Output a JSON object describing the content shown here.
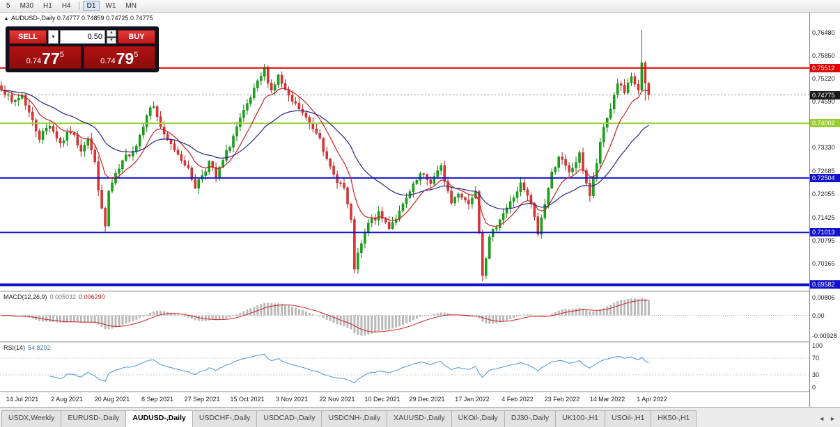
{
  "toolbar": {
    "groups": [
      [
        "5",
        "M30",
        "H1",
        "H4"
      ],
      [
        "D1",
        "W1",
        "MN"
      ]
    ],
    "active": "D1"
  },
  "symbol_header": {
    "marker": "▲",
    "text": "AUDUSD-,Daily  0.74777 0.74859 0.74725 0.74775"
  },
  "trade_panel": {
    "sell_label": "SELL",
    "buy_label": "BUY",
    "volume": "0.50",
    "dropdown_icon": "▼",
    "spin_up_icon": "▲",
    "spin_down_icon": "▼",
    "sell_price": {
      "prefix": "0.74",
      "big": "77",
      "sup": "5"
    },
    "buy_price": {
      "prefix": "0.74",
      "big": "79",
      "sup": "5"
    }
  },
  "indicators": {
    "macd": {
      "name": "MACD(12,26,9)",
      "value1": "0.005032",
      "value2": "0.006290"
    },
    "rsi": {
      "name": "RSI(14)",
      "value": "54.8292"
    }
  },
  "tabs": {
    "items": [
      "USDX,Weekly",
      "EURUSD-,Daily",
      "AUDUSD-,Daily",
      "USDCHF-,Daily",
      "USDCAD-,Daily",
      "USDCNH-,Daily",
      "XAUUSD-,Daily",
      "UKOil-,Daily",
      "DJ30-,Daily",
      "UK100-,H1",
      "USOil-,H1",
      "HK50-,H1"
    ],
    "active_index": 2,
    "scroll_left_icon": "◄",
    "scroll_right_icon": "►"
  },
  "chart_data": {
    "type": "candlestick",
    "symbol": "AUDUSD-",
    "timeframe": "Daily",
    "ohlc_display": {
      "open": 0.74777,
      "high": 0.74859,
      "low": 0.74725,
      "close": 0.74775
    },
    "bid": 0.74775,
    "ask": 0.74795,
    "candles_count": 188,
    "last_close": 0.74775,
    "price_range": [
      0.6942,
      0.7703
    ],
    "close_anchors": [
      [
        0,
        0.75
      ],
      [
        3,
        0.7455
      ],
      [
        6,
        0.7478
      ],
      [
        9,
        0.7405
      ],
      [
        11,
        0.7362
      ],
      [
        14,
        0.7398
      ],
      [
        17,
        0.7345
      ],
      [
        20,
        0.7378
      ],
      [
        23,
        0.733
      ],
      [
        25,
        0.7362
      ],
      [
        27,
        0.729
      ],
      [
        29,
        0.716
      ],
      [
        30,
        0.7118
      ],
      [
        31,
        0.7212
      ],
      [
        33,
        0.7255
      ],
      [
        36,
        0.7308
      ],
      [
        39,
        0.734
      ],
      [
        42,
        0.7428
      ],
      [
        44,
        0.7448
      ],
      [
        47,
        0.7362
      ],
      [
        50,
        0.733
      ],
      [
        53,
        0.7292
      ],
      [
        56,
        0.7228
      ],
      [
        60,
        0.7292
      ],
      [
        62,
        0.7252
      ],
      [
        65,
        0.7318
      ],
      [
        68,
        0.7388
      ],
      [
        71,
        0.7448
      ],
      [
        74,
        0.7508
      ],
      [
        76,
        0.7548
      ],
      [
        78,
        0.749
      ],
      [
        80,
        0.7528
      ],
      [
        83,
        0.7468
      ],
      [
        86,
        0.744
      ],
      [
        89,
        0.7398
      ],
      [
        92,
        0.7368
      ],
      [
        94,
        0.7295
      ],
      [
        96,
        0.7258
      ],
      [
        99,
        0.7222
      ],
      [
        101,
        0.7128
      ],
      [
        102,
        0.7005
      ],
      [
        104,
        0.7068
      ],
      [
        106,
        0.7125
      ],
      [
        109,
        0.715
      ],
      [
        112,
        0.7118
      ],
      [
        115,
        0.7155
      ],
      [
        118,
        0.721
      ],
      [
        121,
        0.7258
      ],
      [
        124,
        0.724
      ],
      [
        127,
        0.7278
      ],
      [
        130,
        0.7182
      ],
      [
        132,
        0.7212
      ],
      [
        135,
        0.718
      ],
      [
        137,
        0.7222
      ],
      [
        139,
        0.6992
      ],
      [
        141,
        0.7082
      ],
      [
        144,
        0.7142
      ],
      [
        147,
        0.7182
      ],
      [
        150,
        0.7232
      ],
      [
        153,
        0.718
      ],
      [
        155,
        0.7098
      ],
      [
        157,
        0.7182
      ],
      [
        159,
        0.7262
      ],
      [
        161,
        0.7312
      ],
      [
        164,
        0.7262
      ],
      [
        167,
        0.7312
      ],
      [
        170,
        0.7202
      ],
      [
        172,
        0.7292
      ],
      [
        174,
        0.7388
      ],
      [
        176,
        0.7442
      ],
      [
        178,
        0.7512
      ],
      [
        180,
        0.7482
      ],
      [
        182,
        0.7522
      ],
      [
        184,
        0.7492
      ],
      [
        185,
        0.7562
      ],
      [
        186,
        0.7502
      ],
      [
        187,
        0.74775
      ]
    ],
    "spikes": [
      {
        "i": 30,
        "low": 0.7104
      },
      {
        "i": 76,
        "high": 0.7553
      },
      {
        "i": 102,
        "low": 0.6999
      },
      {
        "i": 139,
        "low": 0.6968
      },
      {
        "i": 185,
        "high": 0.7656
      },
      {
        "i": 186,
        "low": 0.7462
      }
    ],
    "levels": [
      {
        "price": 0.75512,
        "color": "#e00000",
        "width": 2
      },
      {
        "price": 0.74002,
        "color": "#9acd32",
        "width": 2
      },
      {
        "price": 0.72504,
        "color": "#1212cc",
        "width": 2
      },
      {
        "price": 0.71013,
        "color": "#1212cc",
        "width": 2
      },
      {
        "price": 0.69582,
        "color": "#1212cc",
        "width": 4
      }
    ],
    "current_price": 0.74775,
    "moving_averages": [
      {
        "period": 10,
        "color": "#cc2222"
      },
      {
        "period": 30,
        "color": "#24248c"
      }
    ],
    "candle_colors": {
      "up_fill": "#15a815",
      "up_stroke": "#0b7e0b",
      "down_fill": "#e23434",
      "down_stroke": "#b02020"
    },
    "macd": {
      "params": [
        12,
        26,
        9
      ],
      "main": 0.005032,
      "signal": 0.00629,
      "range": [
        -0.0118,
        0.0106
      ],
      "bar_color": "#b9b9b9",
      "signal_color": "#cc2222"
    },
    "rsi": {
      "period": 14,
      "value": 54.8292,
      "line_color": "#4596d2",
      "levels": [
        70,
        30
      ]
    },
    "axis": {
      "price_ticks": [
        {
          "label": "0.76480",
          "price": 0.7648
        },
        {
          "label": "0.75850",
          "price": 0.7585
        },
        {
          "label": "0.75220",
          "price": 0.7522
        },
        {
          "label": "0.74590",
          "price": 0.7459
        },
        {
          "label": "0.73330",
          "price": 0.7333
        },
        {
          "label": "0.72685",
          "price": 0.72685
        },
        {
          "label": "0.72055",
          "price": 0.72055
        },
        {
          "label": "0.71425",
          "price": 0.71425
        },
        {
          "label": "0.70795",
          "price": 0.70795
        },
        {
          "label": "0.70165",
          "price": 0.70165
        }
      ],
      "price_tags": [
        {
          "label": "0.75512",
          "price": 0.75512,
          "bg": "#e00000"
        },
        {
          "label": "0.74002",
          "price": 0.74002,
          "bg": "#9acd32"
        },
        {
          "label": "0.72504",
          "price": 0.72504,
          "bg": "#1212cc"
        },
        {
          "label": "0.71013",
          "price": 0.71013,
          "bg": "#1212cc"
        },
        {
          "label": "0.69582",
          "price": 0.69582,
          "bg": "#1212cc"
        },
        {
          "label": "0.74775",
          "price": 0.74775,
          "bg": "#1a1a1a"
        }
      ],
      "macd_ticks": [
        {
          "label": "0.00806",
          "value": 0.00806
        },
        {
          "label": "0.00",
          "value": 0
        },
        {
          "label": "-0.00928",
          "value": -0.00928
        }
      ],
      "rsi_ticks": [
        {
          "label": "100",
          "value": 100
        },
        {
          "label": "70",
          "value": 70
        },
        {
          "label": "30",
          "value": 30
        },
        {
          "label": "0",
          "value": 0
        }
      ],
      "dates": [
        "14 Jul 2021",
        "2 Aug 2021",
        "20 Aug 2021",
        "8 Sep 2021",
        "27 Sep 2021",
        "15 Oct 2021",
        "3 Nov 2021",
        "22 Nov 2021",
        "10 Dec 2021",
        "29 Dec 2021",
        "17 Jan 2022",
        "4 Feb 2022",
        "23 Feb 2022",
        "14 Mar 2022",
        "1 Apr 2022"
      ]
    }
  }
}
